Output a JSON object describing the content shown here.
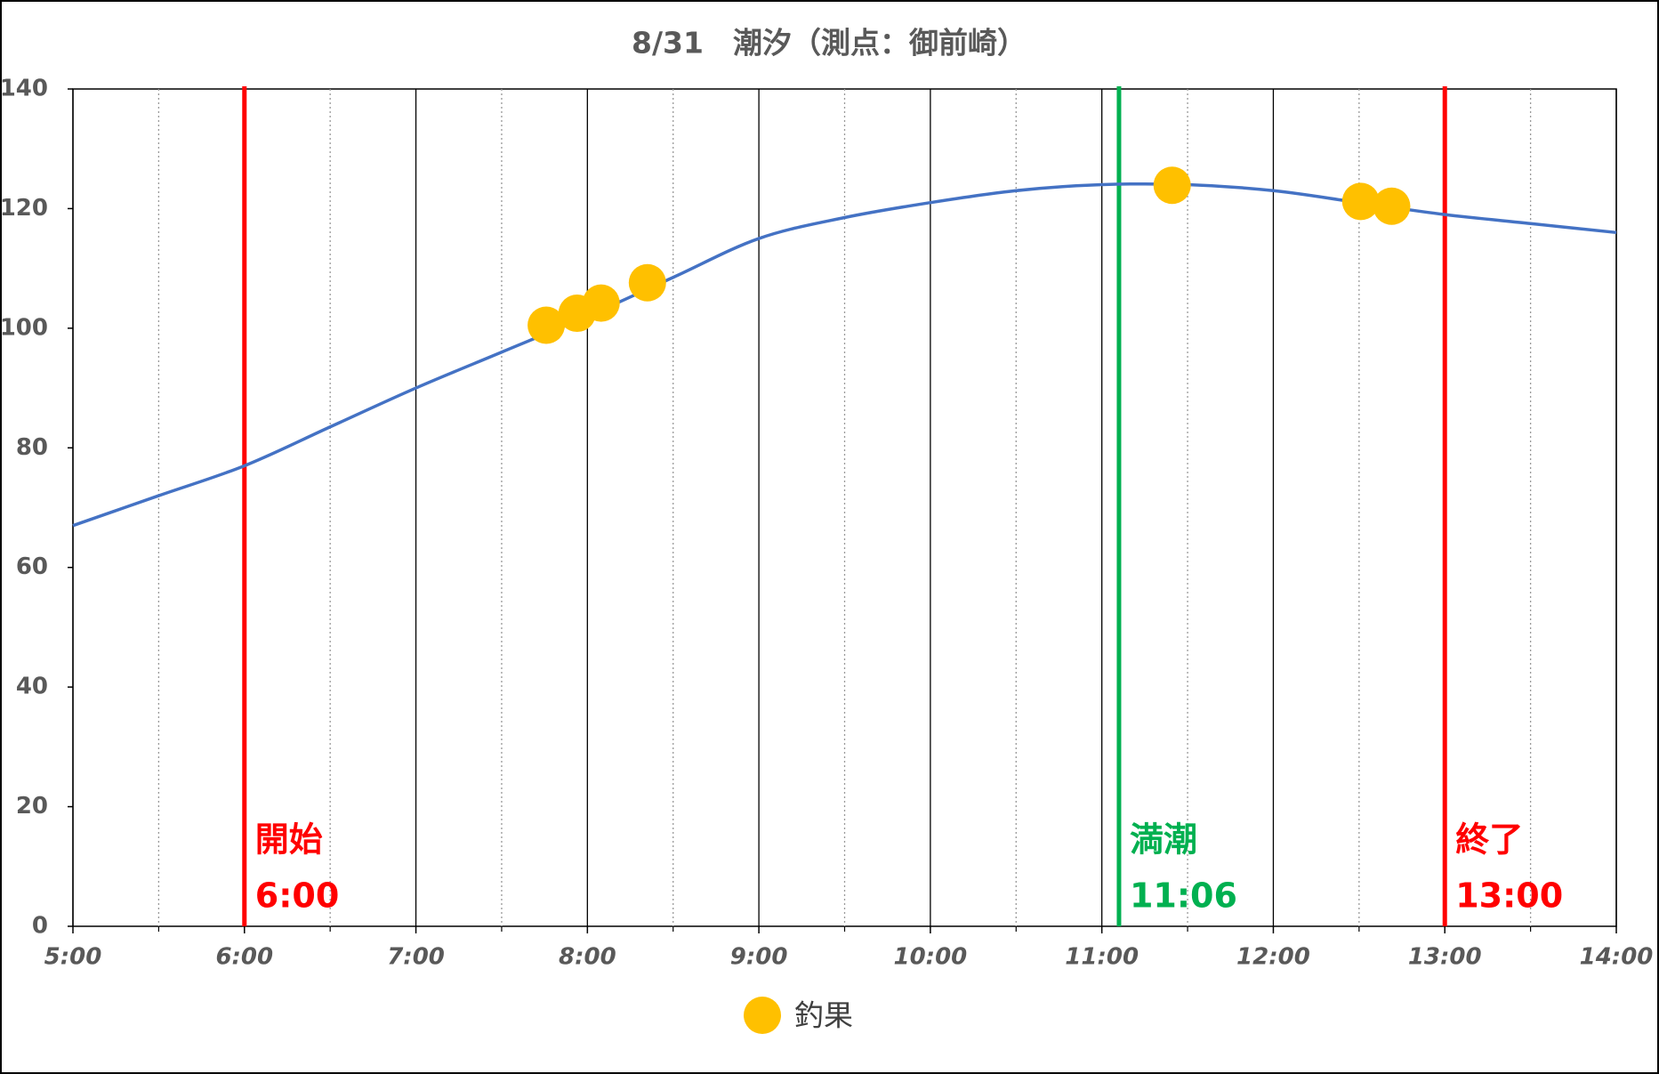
{
  "chart_data": {
    "type": "line",
    "title": "8/31　潮汐（測点：御前崎）",
    "x": [
      5,
      5.5,
      6,
      6.5,
      7,
      7.5,
      8,
      8.5,
      9,
      9.5,
      10,
      10.5,
      11,
      11.5,
      12,
      12.5,
      13,
      13.5,
      14
    ],
    "series": [
      {
        "color": "#4472c4",
        "values": [
          67,
          72,
          77,
          83.5,
          90,
          96,
          102,
          108.5,
          115,
          118.5,
          121,
          123,
          124,
          124,
          123,
          121,
          119,
          117.5,
          116
        ]
      }
    ],
    "scatter": {
      "name": "釣果",
      "color": "#ffc000",
      "x": [
        7.76,
        7.94,
        8.08,
        8.35,
        11.41,
        12.51,
        12.69
      ],
      "values": [
        100.5,
        102.5,
        104.2,
        107.6,
        123.9,
        121.2,
        120.4
      ]
    },
    "annotations": [
      {
        "x": 6,
        "label": "開始",
        "time": "6:00",
        "color": "#ff0000"
      },
      {
        "x": 11.1,
        "label": "満潮",
        "time": "11:06",
        "color": "#00b050"
      },
      {
        "x": 13,
        "label": "終了",
        "time": "13:00",
        "color": "#ff0000"
      }
    ],
    "xlim": [
      5,
      14
    ],
    "xticks": [
      {
        "value": 5,
        "label": "5:00"
      },
      {
        "value": 6,
        "label": "6:00"
      },
      {
        "value": 7,
        "label": "7:00"
      },
      {
        "value": 8,
        "label": "8:00"
      },
      {
        "value": 9,
        "label": "9:00"
      },
      {
        "value": 10,
        "label": "10:00"
      },
      {
        "value": 11,
        "label": "11:00"
      },
      {
        "value": 12,
        "label": "12:00"
      },
      {
        "value": 13,
        "label": "13:00"
      },
      {
        "value": 14,
        "label": "14:00"
      }
    ],
    "ylim": [
      0,
      140
    ],
    "yticks": [
      0,
      20,
      40,
      60,
      80,
      100,
      120,
      140
    ],
    "grid": true
  }
}
